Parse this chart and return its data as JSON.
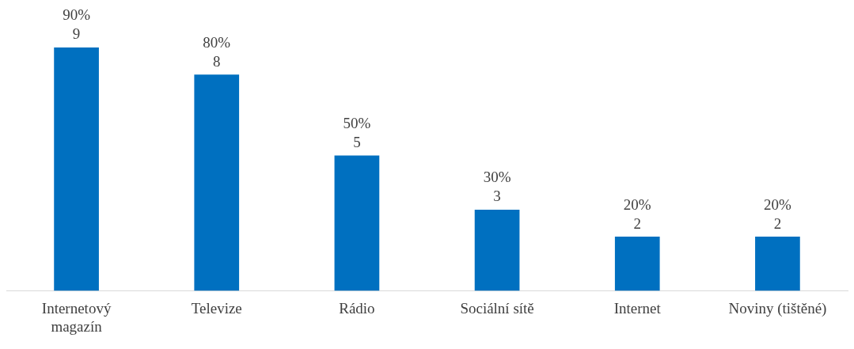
{
  "chart_data": {
    "type": "bar",
    "categories": [
      "Internetový\nmagazín",
      "Televize",
      "Rádio",
      "Sociální sítě",
      "Internet",
      "Noviny (tištěné)"
    ],
    "values": [
      9,
      8,
      5,
      3,
      2,
      2
    ],
    "value_labels": [
      "90%\n9",
      "80%\n8",
      "50%\n5",
      "30%\n3",
      "20%\n2",
      "20%\n2"
    ],
    "color": "#0070c0",
    "grid": false,
    "legend": false
  }
}
